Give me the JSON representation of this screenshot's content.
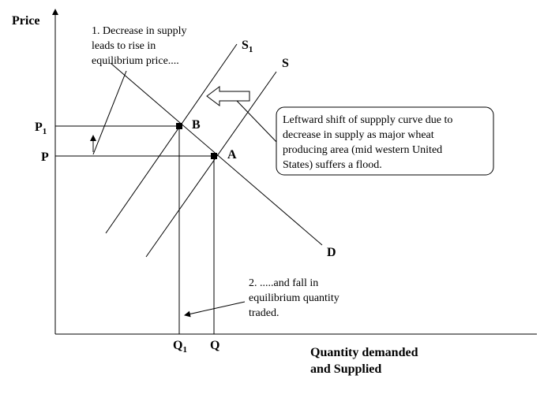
{
  "axes": {
    "y_label": "Price",
    "x_label_lines": [
      "Quantity demanded",
      "and Supplied"
    ]
  },
  "curves": {
    "demand": "D",
    "supply": "S",
    "new_supply": {
      "label": "S",
      "subscript": "1"
    }
  },
  "points": {
    "a": "A",
    "b": "B"
  },
  "prices": {
    "p": "P",
    "p1": {
      "label": "P",
      "subscript": "1"
    }
  },
  "quantities": {
    "q": "Q",
    "q1": {
      "label": "Q",
      "subscript": "1"
    }
  },
  "notes": [
    {
      "lines": [
        "1. Decrease in supply",
        "leads to rise in",
        "equilibrium price...."
      ]
    },
    {
      "lines": [
        "Leftward shift of suppply curve due to",
        "decrease in supply as major wheat",
        "producing area (mid western United",
        "States) suffers a flood."
      ]
    },
    {
      "lines": [
        "2. .....and fall in",
        "equilibrium quantity",
        "traded."
      ]
    }
  ]
}
